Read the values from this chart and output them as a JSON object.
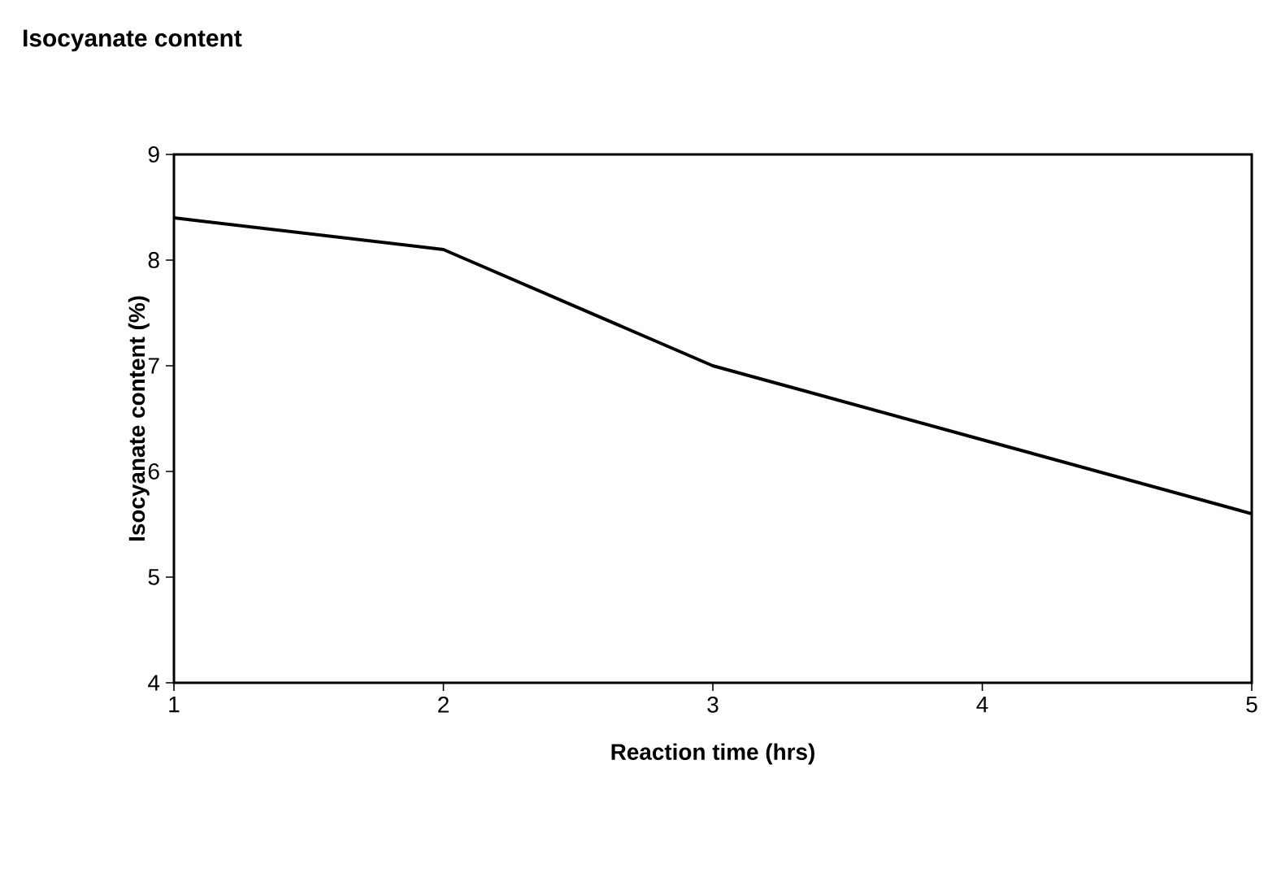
{
  "chart_data": {
    "type": "line",
    "title": "Isocyanate content",
    "xlabel": "Reaction time (hrs)",
    "ylabel": "Isocyanate content (%)",
    "x": [
      1,
      2,
      3,
      4,
      5
    ],
    "series": [
      {
        "color": "#000000",
        "values": [
          8.4,
          8.1,
          7.0,
          6.3,
          5.6
        ]
      }
    ],
    "xlim": [
      1,
      5
    ],
    "xticks": [
      1,
      2,
      3,
      4,
      5
    ],
    "ylim": [
      4,
      9
    ],
    "yticks": [
      4,
      5,
      6,
      7,
      8,
      9
    ],
    "grid": false
  }
}
